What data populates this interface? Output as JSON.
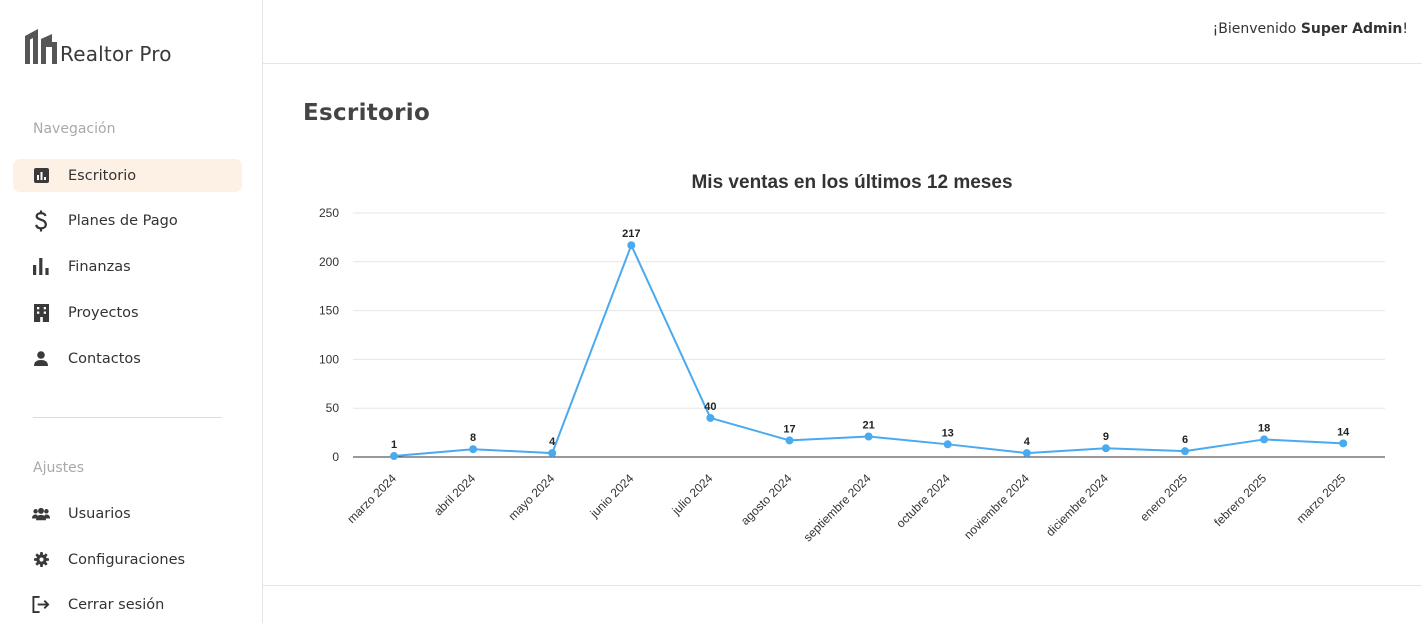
{
  "brand": {
    "name": "Realtor Pro",
    "logo_icon": "building-logo-icon"
  },
  "header": {
    "welcome_prefix": "¡Bienvenido ",
    "user_name": "Super Admin",
    "welcome_suffix": "!"
  },
  "sidebar": {
    "nav_section_label": "Navegación",
    "nav_items": [
      {
        "label": "Escritorio",
        "icon": "dashboard-icon",
        "active": true
      },
      {
        "label": "Planes de Pago",
        "icon": "dollar-icon"
      },
      {
        "label": "Finanzas",
        "icon": "bar-chart-icon"
      },
      {
        "label": "Proyectos",
        "icon": "building-icon"
      },
      {
        "label": "Contactos",
        "icon": "person-icon"
      }
    ],
    "settings_section_label": "Ajustes",
    "settings_items": [
      {
        "label": "Usuarios",
        "icon": "users-icon"
      },
      {
        "label": "Configuraciones",
        "icon": "gear-icon"
      },
      {
        "label": "Cerrar sesión",
        "icon": "logout-icon"
      }
    ]
  },
  "main": {
    "title": "Escritorio"
  },
  "colors": {
    "accent_bg": "#fdf1e5",
    "line": "#4aaaf0"
  },
  "chart_data": {
    "type": "line",
    "title": "Mis ventas en los últimos 12 meses",
    "categories": [
      "marzo 2024",
      "abril 2024",
      "mayo 2024",
      "junio 2024",
      "julio 2024",
      "agosto 2024",
      "septiembre 2024",
      "octubre 2024",
      "noviembre 2024",
      "diciembre 2024",
      "enero 2025",
      "febrero 2025",
      "marzo 2025"
    ],
    "values": [
      1,
      8,
      4,
      217,
      40,
      17,
      21,
      13,
      4,
      9,
      6,
      18,
      14
    ],
    "ylim": [
      0,
      250
    ],
    "yticks": [
      0,
      50,
      100,
      150,
      200,
      250
    ],
    "grid": true,
    "data_labels": true,
    "legend": "none"
  }
}
